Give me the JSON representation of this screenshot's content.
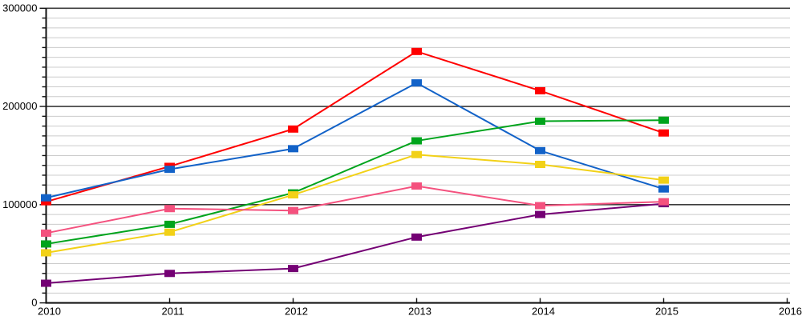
{
  "chart_data": {
    "type": "line",
    "title": "",
    "xlabel": "",
    "ylabel": "",
    "legend_position": "none",
    "grid": {
      "minor_on": true,
      "major_on": true,
      "minor_color": "#cccccc",
      "major_color": "#3c3c3c",
      "axis_color": "#111111"
    },
    "x_axis": {
      "min": 2010,
      "max": 2016,
      "tick_labels": [
        "2010",
        "2011",
        "2012",
        "2013",
        "2014",
        "2015",
        "2016"
      ]
    },
    "y_axis": {
      "min": 0,
      "max": 300000,
      "major_step": 100000,
      "minor_step": 10000,
      "major_labels": [
        "0",
        "100000",
        "200000",
        "300000"
      ]
    },
    "x": [
      2010,
      2011,
      2012,
      2013,
      2014,
      2015
    ],
    "series": [
      {
        "name": "red",
        "color": "#ff0000",
        "values": [
          103000,
          139000,
          177000,
          256000,
          216000,
          173000
        ]
      },
      {
        "name": "blue",
        "color": "#1262c8",
        "values": [
          107000,
          136000,
          157000,
          224000,
          155000,
          116000
        ]
      },
      {
        "name": "green",
        "color": "#00a41c",
        "values": [
          60000,
          80000,
          112000,
          165000,
          185000,
          186000
        ]
      },
      {
        "name": "yellow",
        "color": "#f2d117",
        "values": [
          51000,
          72000,
          110000,
          151000,
          141000,
          125000
        ]
      },
      {
        "name": "purple",
        "color": "#740074",
        "values": [
          20000,
          30000,
          35000,
          67000,
          90000,
          101000
        ]
      },
      {
        "name": "pink",
        "color": "#f4517e",
        "values": [
          71000,
          96000,
          94000,
          119000,
          99000,
          103000
        ]
      }
    ]
  }
}
